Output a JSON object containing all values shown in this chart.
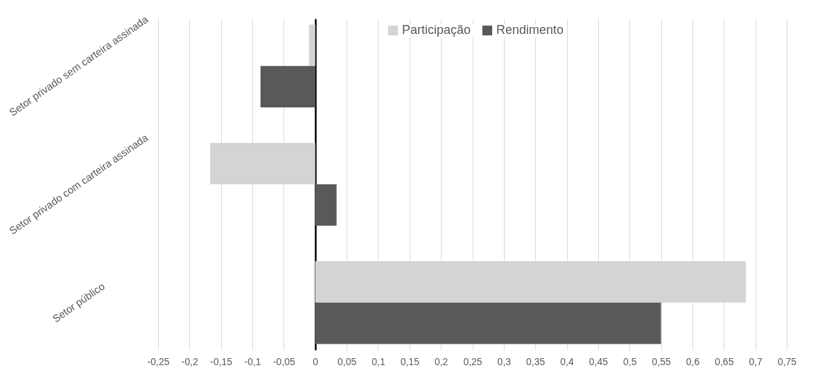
{
  "chart_data": {
    "type": "bar",
    "orientation": "horizontal",
    "categories": [
      "Setor privado sem carteira assinada",
      "Setor privado com carteira assinada",
      "Setor público"
    ],
    "series": [
      {
        "name": "Participação",
        "color": "#d4d4d4",
        "values": [
          -0.01,
          -0.167,
          0.685
        ]
      },
      {
        "name": "Rendimento",
        "color": "#595959",
        "values": [
          -0.087,
          0.034,
          0.55
        ]
      }
    ],
    "xlim": [
      -0.25,
      0.75
    ],
    "xticks": [
      {
        "value": -0.25,
        "label": "-0,25"
      },
      {
        "value": -0.2,
        "label": "-0,2"
      },
      {
        "value": -0.15,
        "label": "-0,15"
      },
      {
        "value": -0.1,
        "label": "-0,1"
      },
      {
        "value": -0.05,
        "label": "-0,05"
      },
      0,
      {
        "value": 0.05,
        "label": "0,05"
      },
      {
        "value": 0.1,
        "label": "0,1"
      },
      {
        "value": 0.15,
        "label": "0,15"
      },
      {
        "value": 0.2,
        "label": "0,2"
      },
      {
        "value": 0.25,
        "label": "0,25"
      },
      {
        "value": 0.3,
        "label": "0,3"
      },
      {
        "value": 0.35,
        "label": "0,35"
      },
      {
        "value": 0.4,
        "label": "0,4"
      },
      {
        "value": 0.45,
        "label": "0,45"
      },
      {
        "value": 0.5,
        "label": "0,5"
      },
      {
        "value": 0.55,
        "label": "0,55"
      },
      {
        "value": 0.6,
        "label": "0,6"
      },
      {
        "value": 0.65,
        "label": "0,65"
      },
      {
        "value": 0.7,
        "label": "0,7"
      },
      {
        "value": 0.75,
        "label": "0,75"
      }
    ],
    "grid": "x",
    "legend": "top"
  }
}
